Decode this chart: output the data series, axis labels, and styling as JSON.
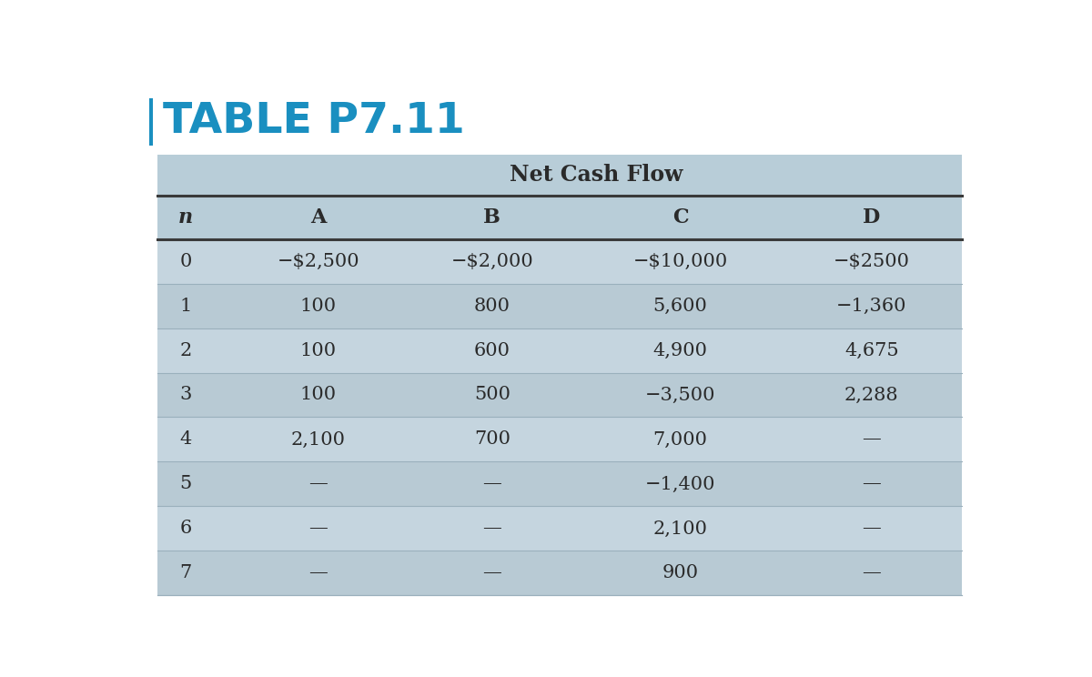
{
  "title": "TABLE P7.11",
  "title_color": "#1A8FC0",
  "super_header": "Net Cash Flow",
  "col_headers": [
    "n",
    "A",
    "B",
    "C",
    "D"
  ],
  "rows": [
    [
      "0",
      "−$2,500",
      "−$2,000",
      "−$10,000",
      "−$2500"
    ],
    [
      "1",
      "100",
      "800",
      "5,600",
      "−1,360"
    ],
    [
      "2",
      "100",
      "600",
      "4,900",
      "4,675"
    ],
    [
      "3",
      "100",
      "500",
      "−3,500",
      "2,288"
    ],
    [
      "4",
      "2,100",
      "700",
      "7,000",
      "—"
    ],
    [
      "5",
      "—",
      "—",
      "−1,400",
      "—"
    ],
    [
      "6",
      "—",
      "—",
      "2,100",
      "—"
    ],
    [
      "7",
      "—",
      "—",
      "900",
      "—"
    ]
  ],
  "bg_color_light": "#B8CDD8",
  "bg_color_medium": "#AABFCC",
  "bg_color_header": "#A8C0CE",
  "bg_color_super": "#A8BFCC",
  "row_colors": [
    "#C5D5DF",
    "#B8CAD4"
  ],
  "white_bg": "#FFFFFF",
  "thick_line_color": "#3A3A3A",
  "thin_line_color": "#9AB0BC",
  "text_color": "#2A2A2A",
  "title_bar_color": "#1A8FC0",
  "left_bar_color": "#1A8FC0",
  "figsize": [
    12.0,
    7.44
  ],
  "dpi": 100
}
